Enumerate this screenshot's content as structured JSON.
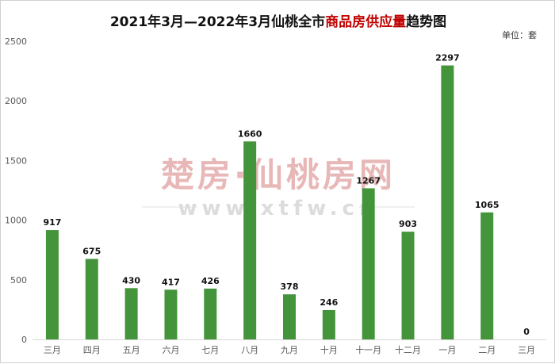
{
  "chart_data": {
    "type": "bar",
    "title_parts": [
      "2021年3月—2022年3月仙桃全市",
      "商品房供应量",
      "趋势图"
    ],
    "unit_label": "单位：套",
    "categories": [
      "三月",
      "四月",
      "五月",
      "六月",
      "七月",
      "八月",
      "九月",
      "十月",
      "十一月",
      "十二月",
      "一月",
      "二月",
      "三月"
    ],
    "values": [
      917,
      675,
      430,
      417,
      426,
      1660,
      378,
      246,
      1267,
      903,
      2297,
      1065,
      0
    ],
    "ylim": [
      0,
      2500
    ],
    "yticks": [
      0,
      500,
      1000,
      1500,
      2000,
      2500
    ],
    "grid": false,
    "bar_color": "#43943a",
    "title_highlight_color": "#c00000"
  },
  "watermark": {
    "line1": "楚房·仙桃房网",
    "line2": "www.xtfw.cn"
  }
}
